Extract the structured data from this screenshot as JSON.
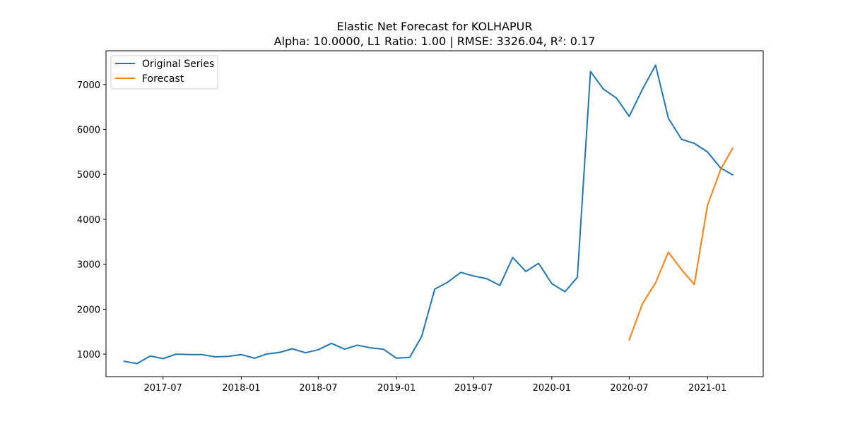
{
  "chart_data": {
    "type": "line",
    "title": "Elastic Net Forecast for KOLHAPUR",
    "subtitle": "Alpha: 10.0000, L1 Ratio: 1.00 | RMSE: 3326.04, R²: 0.17",
    "xlabel": "",
    "ylabel": "",
    "x_tick_labels": [
      "2017-07",
      "2018-01",
      "2018-07",
      "2019-01",
      "2019-07",
      "2020-01",
      "2020-07",
      "2021-01"
    ],
    "y_ticks": [
      1000,
      2000,
      3000,
      4000,
      5000,
      6000,
      7000
    ],
    "ylim": [
      500,
      7750
    ],
    "grid": false,
    "legend_position": "upper-left",
    "series": [
      {
        "name": "Original Series",
        "color": "#1f77b4",
        "x": [
          "2017-04",
          "2017-05",
          "2017-06",
          "2017-07",
          "2017-08",
          "2017-09",
          "2017-10",
          "2017-11",
          "2017-12",
          "2018-01",
          "2018-02",
          "2018-03",
          "2018-04",
          "2018-05",
          "2018-06",
          "2018-07",
          "2018-08",
          "2018-09",
          "2018-10",
          "2018-11",
          "2018-12",
          "2019-01",
          "2019-02",
          "2019-03",
          "2019-04",
          "2019-05",
          "2019-06",
          "2019-07",
          "2019-08",
          "2019-09",
          "2019-10",
          "2019-11",
          "2019-12",
          "2020-01",
          "2020-02",
          "2020-03",
          "2020-04",
          "2020-05",
          "2020-06",
          "2020-07",
          "2020-08",
          "2020-09",
          "2020-10",
          "2020-11",
          "2020-12",
          "2021-01",
          "2021-02",
          "2021-03"
        ],
        "values": [
          840,
          790,
          960,
          900,
          1000,
          990,
          990,
          940,
          950,
          990,
          910,
          1000,
          1040,
          1120,
          1030,
          1100,
          1240,
          1110,
          1200,
          1140,
          1110,
          910,
          930,
          1390,
          2450,
          2600,
          2820,
          2740,
          2680,
          2530,
          3150,
          2840,
          3020,
          2570,
          2390,
          2710,
          7290,
          6900,
          6700,
          6290,
          6890,
          7430,
          6250,
          5780,
          5690,
          5500,
          5140,
          4990
        ]
      },
      {
        "name": "Forecast",
        "color": "#ff7f0e",
        "x": [
          "2020-07",
          "2020-08",
          "2020-09",
          "2020-10",
          "2020-11",
          "2020-12",
          "2021-01",
          "2021-02",
          "2021-03"
        ],
        "values": [
          1320,
          2120,
          2590,
          3270,
          2880,
          2550,
          4310,
          5110,
          5580
        ]
      }
    ]
  }
}
